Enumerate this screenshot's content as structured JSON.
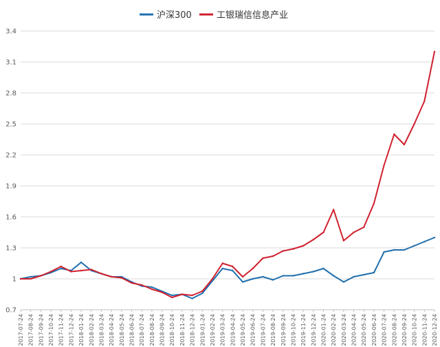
{
  "chart_data": {
    "type": "line",
    "title": "",
    "xlabel": "",
    "ylabel": "",
    "ylim": [
      0.7,
      3.4
    ],
    "yticks": [
      "0.7",
      "1",
      "1.3",
      "1.6",
      "1.9",
      "2.2",
      "2.5",
      "2.8",
      "3.1",
      "3.4"
    ],
    "grid": true,
    "legend_position": "top",
    "x": [
      "2017-07-24",
      "2017-08-24",
      "2017-09-24",
      "2017-10-24",
      "2017-11-24",
      "2017-12-24",
      "2018-01-24",
      "2018-02-24",
      "2018-03-24",
      "2018-04-24",
      "2018-05-24",
      "2018-06-24",
      "2018-07-24",
      "2018-08-24",
      "2018-09-24",
      "2018-10-24",
      "2018-11-24",
      "2018-12-24",
      "2019-01-24",
      "2019-02-24",
      "2019-03-24",
      "2019-04-24",
      "2019-05-24",
      "2019-06-24",
      "2019-07-24",
      "2019-08-24",
      "2019-09-24",
      "2019-10-24",
      "2019-11-24",
      "2019-12-24",
      "2020-01-24",
      "2020-02-24",
      "2020-03-24",
      "2020-04-24",
      "2020-05-24",
      "2020-06-24",
      "2020-07-24",
      "2020-08-24",
      "2020-09-24",
      "2020-10-24",
      "2020-11-24",
      "2020-12-24"
    ],
    "series": [
      {
        "name": "沪深300",
        "color": "#1f6fae",
        "values": [
          1.0,
          1.02,
          1.03,
          1.06,
          1.1,
          1.08,
          1.16,
          1.08,
          1.05,
          1.02,
          1.02,
          0.97,
          0.93,
          0.92,
          0.88,
          0.84,
          0.85,
          0.81,
          0.86,
          0.98,
          1.1,
          1.08,
          0.97,
          1.0,
          1.02,
          0.99,
          1.03,
          1.03,
          1.05,
          1.07,
          1.1,
          1.03,
          0.97,
          1.02,
          1.04,
          1.06,
          1.26,
          1.28,
          1.28,
          1.32,
          1.36,
          1.4
        ]
      },
      {
        "name": "工银瑞信信息产业",
        "color": "#d0202e",
        "values": [
          1.0,
          1.0,
          1.03,
          1.07,
          1.12,
          1.07,
          1.08,
          1.09,
          1.05,
          1.02,
          1.01,
          0.96,
          0.94,
          0.9,
          0.87,
          0.82,
          0.85,
          0.84,
          0.88,
          1.0,
          1.15,
          1.12,
          1.02,
          1.1,
          1.2,
          1.22,
          1.27,
          1.29,
          1.32,
          1.38,
          1.45,
          1.67,
          1.37,
          1.45,
          1.5,
          1.73,
          2.1,
          2.4,
          2.3,
          2.5,
          2.72,
          3.2
        ]
      }
    ]
  }
}
